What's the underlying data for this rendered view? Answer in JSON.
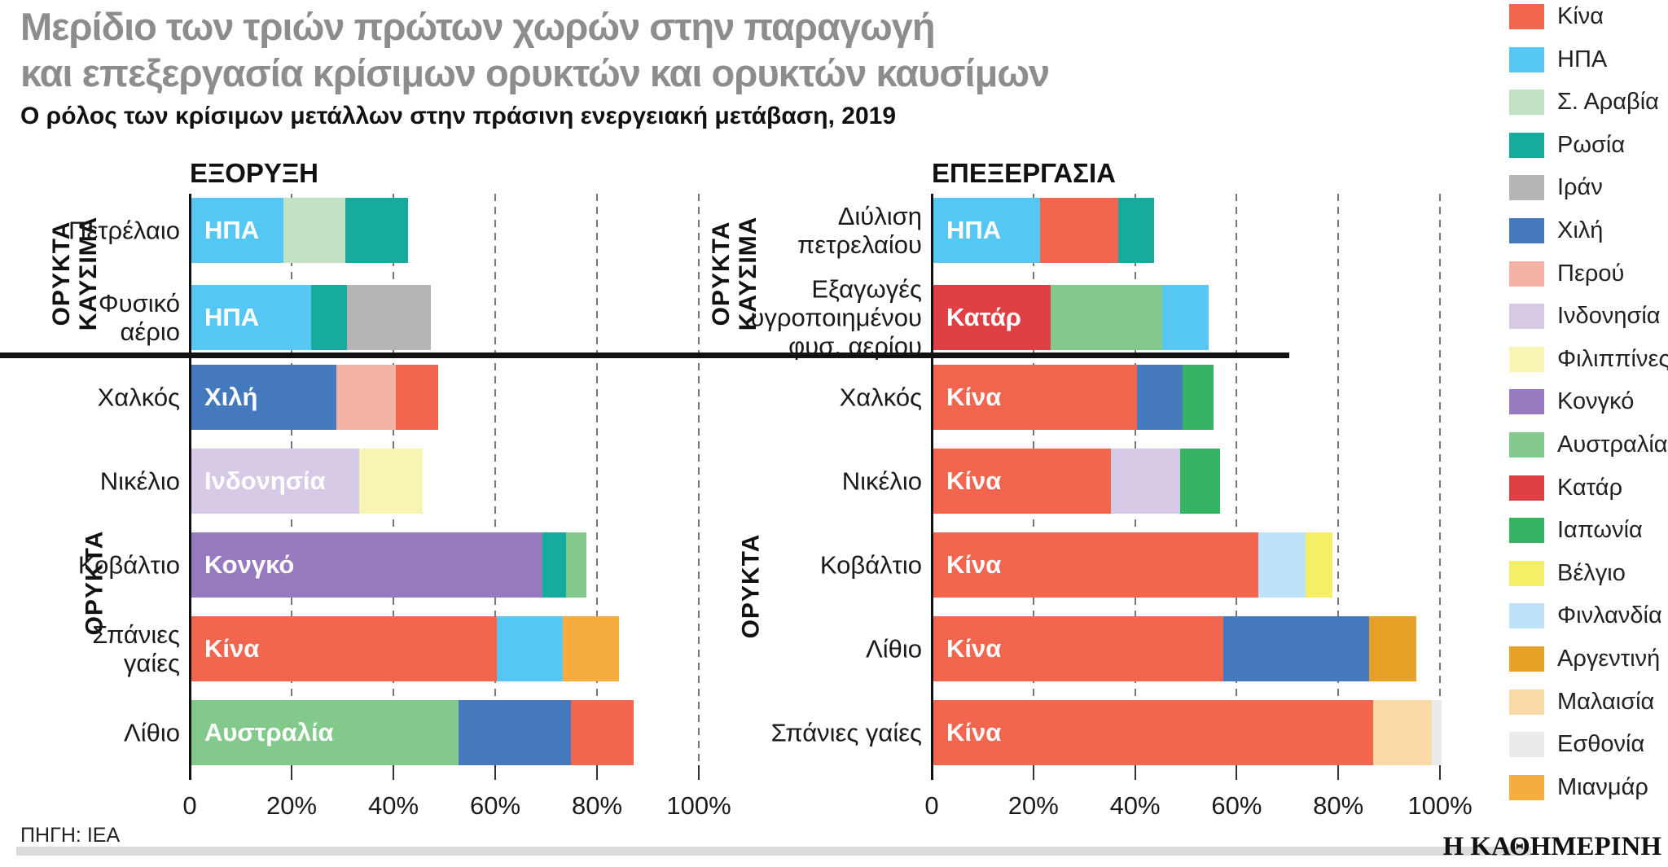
{
  "title": "Μερίδιο των τριών πρώτων χωρών στην παραγωγή\nκαι επεξεργασία κρίσιμων ορυκτών και ορυκτών καυσίμων",
  "subtitle": "Ο ρόλος των κρίσιμων μετάλλων στην πράσινη ενεργειακή μετάβαση, 2019",
  "source": "ΠΗΓΗ: ΙΕΑ",
  "brand": "Η ΚΑΘΗΜΕΡΙΝΗ",
  "colors": {
    "Κίνα": "#F2664F",
    "ΗΠΑ": "#56C7F2",
    "Σ. Αραβία": "#C2E2C4",
    "Ρωσία": "#16AB9C",
    "Ιράν": "#B3B5B6",
    "Χιλή": "#4579BE",
    "Περού": "#F5B2A7",
    "Ινδονησία": "#D7CAE6",
    "Φιλιππίνες": "#F8F4B4",
    "Κονγκό": "#9779BF",
    "Αυστραλία": "#83C98B",
    "Κατάρ": "#DF4046",
    "Ιαπωνία": "#35B563",
    "Βέλγιο": "#F4EF66",
    "Φινλανδία": "#BEE3F9",
    "Αργεντινή": "#E6A227",
    "Μαλαισία": "#F9DAA7",
    "Εσθονία": "#E9EBEC",
    "Μιανμάρ": "#F7AC3E"
  },
  "legend": {
    "items": [
      "Κίνα",
      "ΗΠΑ",
      "Σ. Αραβία",
      "Ρωσία",
      "Ιράν",
      "Χιλή",
      "Περού",
      "Ινδονησία",
      "Φιλιππίνες",
      "Κονγκό",
      "Αυστραλία",
      "Κατάρ",
      "Ιαπωνία",
      "Βέλγιο",
      "Φινλανδία",
      "Αργεντινή",
      "Μαλαισία",
      "Εσθονία",
      "Μιανμάρ"
    ]
  },
  "axis": {
    "ticks": [
      "0",
      "20%",
      "40%",
      "60%",
      "80%",
      "100%"
    ],
    "tick_values": [
      0,
      20,
      40,
      60,
      80,
      100
    ]
  },
  "chart_data": [
    {
      "type": "bar",
      "orientation": "horizontal-stacked",
      "title": "ΕΞΟΡΥΞΗ",
      "unit": "%",
      "xlim": [
        0,
        100
      ],
      "x_ticks": [
        "0",
        "20%",
        "40%",
        "60%",
        "80%",
        "100%"
      ],
      "grid": "dashed-vertical",
      "sections": [
        {
          "label": "ΟΡΥΚΤΑ\nΚΑΥΣΙΜΑ",
          "rows": [
            {
              "category": "Πετρέλαιο",
              "bar_label": "ΗΠΑ",
              "segments": [
                {
                  "name": "ΗΠΑ",
                  "value": 18
                },
                {
                  "name": "Σ. Αραβία",
                  "value": 12.3
                },
                {
                  "name": "Ρωσία",
                  "value": 12.3
                }
              ]
            },
            {
              "category": "Φυσικό\nαέριο",
              "bar_label": "ΗΠΑ",
              "segments": [
                {
                  "name": "ΗΠΑ",
                  "value": 23.5
                },
                {
                  "name": "Ρωσία",
                  "value": 7
                },
                {
                  "name": "Ιράν",
                  "value": 16.5
                }
              ]
            }
          ]
        },
        {
          "label": "ΟΡΥΚΤΑ",
          "rows": [
            {
              "category": "Χαλκός",
              "bar_label": "Χιλή",
              "segments": [
                {
                  "name": "Χιλή",
                  "value": 28.5
                },
                {
                  "name": "Περού",
                  "value": 11.7
                },
                {
                  "name": "Κίνα",
                  "value": 8.3
                }
              ]
            },
            {
              "category": "Νικέλιο",
              "bar_label": "Ινδονησία",
              "segments": [
                {
                  "name": "Ινδονησία",
                  "value": 33
                },
                {
                  "name": "Φιλιππίνες",
                  "value": 12.5
                }
              ]
            },
            {
              "category": "Κοβάλτιο",
              "bar_label": "Κονγκό",
              "segments": [
                {
                  "name": "Κονγκό",
                  "value": 69
                },
                {
                  "name": "Ρωσία",
                  "value": 4.6
                },
                {
                  "name": "Αυστραλία",
                  "value": 4
                }
              ]
            },
            {
              "category": "Σπάνιες\nγαίες",
              "bar_label": "Κίνα",
              "segments": [
                {
                  "name": "Κίνα",
                  "value": 60
                },
                {
                  "name": "ΗΠΑ",
                  "value": 13
                },
                {
                  "name": "Μιανμάρ",
                  "value": 11
                }
              ]
            },
            {
              "category": "Λίθιο",
              "bar_label": "Αυστραλία",
              "segments": [
                {
                  "name": "Αυστραλία",
                  "value": 52.5
                },
                {
                  "name": "Χιλή",
                  "value": 22
                },
                {
                  "name": "Κίνα",
                  "value": 12.3
                }
              ]
            }
          ]
        }
      ]
    },
    {
      "type": "bar",
      "orientation": "horizontal-stacked",
      "title": "ΕΠΕΞΕΡΓΑΣΙΑ",
      "unit": "%",
      "xlim": [
        0,
        100
      ],
      "x_ticks": [
        "0",
        "20%",
        "40%",
        "60%",
        "80%",
        "100%"
      ],
      "grid": "dashed-vertical",
      "sections": [
        {
          "label": "ΟΡΥΚΤΑ\nΚΑΥΣΙΜΑ",
          "rows": [
            {
              "category": "Διύλιση\nπετρελαίου",
              "bar_label": "ΗΠΑ",
              "segments": [
                {
                  "name": "ΗΠΑ",
                  "value": 21
                },
                {
                  "name": "Κίνα",
                  "value": 15.3
                },
                {
                  "name": "Ρωσία",
                  "value": 7.2
                }
              ]
            },
            {
              "category": "Εξαγωγές\nυγροποιημένου\nφυσ. αερίου",
              "bar_label": "Κατάρ",
              "segments": [
                {
                  "name": "Κατάρ",
                  "value": 23
                },
                {
                  "name": "Αυστραλία",
                  "value": 22
                },
                {
                  "name": "ΗΠΑ",
                  "value": 9.2
                }
              ]
            }
          ]
        },
        {
          "label": "ΟΡΥΚΤΑ",
          "rows": [
            {
              "category": "Χαλκός",
              "bar_label": "Κίνα",
              "segments": [
                {
                  "name": "Κίνα",
                  "value": 40
                },
                {
                  "name": "Χιλή",
                  "value": 9
                },
                {
                  "name": "Ιαπωνία",
                  "value": 6.2
                }
              ]
            },
            {
              "category": "Νικέλιο",
              "bar_label": "Κίνα",
              "segments": [
                {
                  "name": "Κίνα",
                  "value": 35
                },
                {
                  "name": "Ινδονησία",
                  "value": 13.6
                },
                {
                  "name": "Ιαπωνία",
                  "value": 7.8
                }
              ]
            },
            {
              "category": "Κοβάλτιο",
              "bar_label": "Κίνα",
              "segments": [
                {
                  "name": "Κίνα",
                  "value": 64
                },
                {
                  "name": "Φινλανδία",
                  "value": 9.2
                },
                {
                  "name": "Βέλγιο",
                  "value": 5.3
                }
              ]
            },
            {
              "category": "Λίθιο",
              "bar_label": "Κίνα",
              "segments": [
                {
                  "name": "Κίνα",
                  "value": 57
                },
                {
                  "name": "Χιλή",
                  "value": 28.8
                },
                {
                  "name": "Αργεντινή",
                  "value": 9.2
                }
              ]
            },
            {
              "category": "Σπάνιες γαίες",
              "bar_label": "Κίνα",
              "segments": [
                {
                  "name": "Κίνα",
                  "value": 86.5
                },
                {
                  "name": "Μαλαισία",
                  "value": 11.6
                },
                {
                  "name": "Εσθονία",
                  "value": 1.9
                }
              ]
            }
          ]
        }
      ]
    }
  ]
}
